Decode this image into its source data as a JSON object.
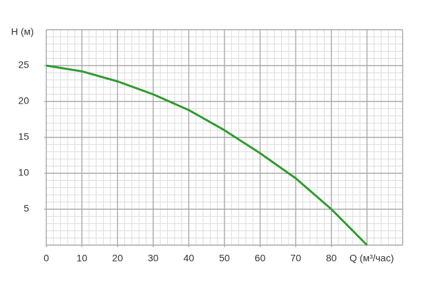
{
  "chart_data": {
    "type": "line",
    "x_label": "Q (м³/час)",
    "y_label": "H (м)",
    "x": [
      0,
      10,
      20,
      30,
      40,
      50,
      60,
      70,
      80,
      90
    ],
    "series": [
      {
        "color": "#2e9b2e",
        "values": [
          25,
          24.2,
          22.8,
          21,
          18.8,
          16,
          12.8,
          9.3,
          5,
          0
        ]
      }
    ],
    "xlim": [
      0,
      100
    ],
    "ylim": [
      0,
      30
    ],
    "xticks": [
      0,
      10,
      20,
      30,
      40,
      50,
      60,
      70,
      80
    ],
    "yticks": [
      5,
      10,
      15,
      20,
      25
    ],
    "grid": true
  }
}
